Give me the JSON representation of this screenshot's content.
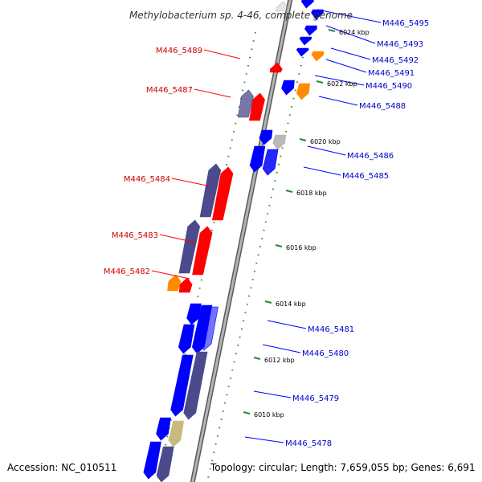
{
  "title": "Methylobacterium sp. 4-46, complete genome",
  "footer": {
    "accession": "Accession: NC_010511",
    "summary": "Topology: circular; Length: 7,659,055 bp; Genes: 6,691"
  },
  "colors": {
    "reverse_cds": "#ff0000",
    "forward_cds": "#0000ff",
    "orange_feature": "#ff8c00",
    "slate_feature": "#4a4a8c",
    "gray_feature": "#b8b8b8",
    "khaki_feature": "#c8bb80",
    "tick": "#2a8a2a",
    "backbone": "#999999"
  },
  "ticks": [
    {
      "label": "6024 kbp"
    },
    {
      "label": "6022 kbp"
    },
    {
      "label": "6020 kbp"
    },
    {
      "label": "6018 kbp"
    },
    {
      "label": "6016 kbp"
    },
    {
      "label": "6014 kbp"
    },
    {
      "label": "6012 kbp"
    },
    {
      "label": "6010 kbp"
    }
  ],
  "genes_reverse": [
    {
      "label": "M446_5489"
    },
    {
      "label": "M446_5487"
    },
    {
      "label": "M446_5484"
    },
    {
      "label": "M446_5483"
    },
    {
      "label": "M446_5482"
    }
  ],
  "genes_forward": [
    {
      "label": "M446_5495"
    },
    {
      "label": "M446_5493"
    },
    {
      "label": "M446_5492"
    },
    {
      "label": "M446_5491"
    },
    {
      "label": "M446_5490"
    },
    {
      "label": "M446_5488"
    },
    {
      "label": "M446_5486"
    },
    {
      "label": "M446_5485"
    },
    {
      "label": "M446_5481"
    },
    {
      "label": "M446_5480"
    },
    {
      "label": "M446_5479"
    },
    {
      "label": "M446_5478"
    }
  ]
}
